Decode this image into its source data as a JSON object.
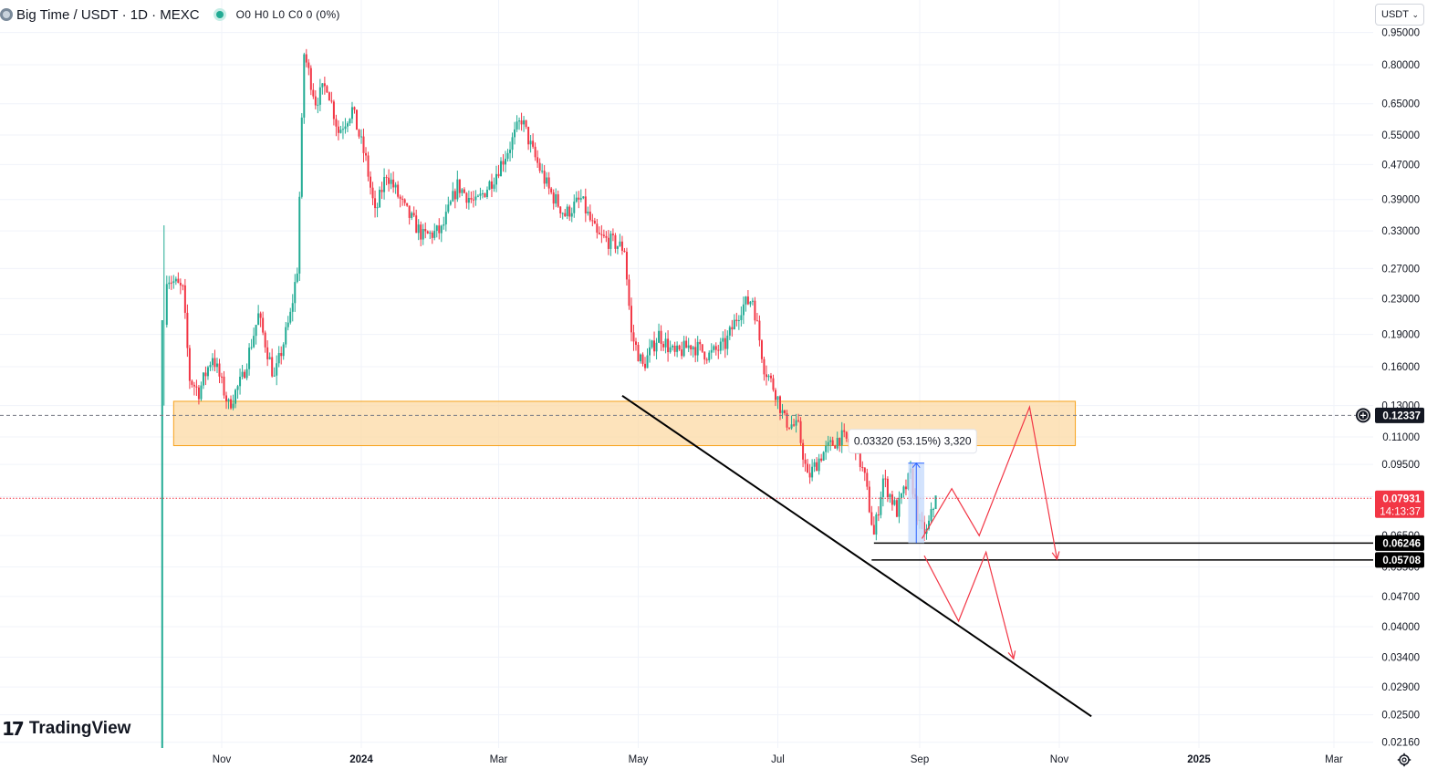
{
  "header": {
    "title": "Big Time / USDT · 1D · MEXC",
    "ohlc": "O0 H0 L0 C0 0 (0%)",
    "status_color": "#22ab94"
  },
  "currency_button": {
    "label": "USDT",
    "icon": "chevron-down-icon"
  },
  "logo": {
    "mark": "17",
    "text": "TradingView"
  },
  "settings_icon": "gear-icon",
  "colors": {
    "up": "#22ab94",
    "down": "#f23645",
    "zone_fill": "#fcd9a4",
    "zone_border": "#f7a21b",
    "measure_fill": "#c8dcfc",
    "measure_border": "#2962ff",
    "projection": "#f23645",
    "trendline": "#000000",
    "grid": "#f0f3fa",
    "axis_text": "#131722"
  },
  "chart_data": {
    "type": "candlestick",
    "title": "Big Time / USDT · 1D · MEXC",
    "y_scale": "log",
    "ylim": [
      0.0205,
      1.0
    ],
    "xlim": [
      "2023-09-23",
      "2025-03-31"
    ],
    "x_ticks": [
      {
        "date": "2023-11-01",
        "label": "Nov"
      },
      {
        "date": "2024-01-01",
        "label": "2024"
      },
      {
        "date": "2024-03-01",
        "label": "Mar"
      },
      {
        "date": "2024-05-01",
        "label": "May"
      },
      {
        "date": "2024-07-01",
        "label": "Jul"
      },
      {
        "date": "2024-09-01",
        "label": "Sep"
      },
      {
        "date": "2024-11-01",
        "label": "Nov"
      },
      {
        "date": "2025-01-01",
        "label": "2025"
      },
      {
        "date": "2025-03-01",
        "label": "Mar"
      }
    ],
    "y_ticks": [
      "0.95000",
      "0.80000",
      "0.65000",
      "0.55000",
      "0.47000",
      "0.39000",
      "0.33000",
      "0.27000",
      "0.23000",
      "0.19000",
      "0.16000",
      "0.13000",
      "0.11000",
      "0.09500",
      "0.08000",
      "0.06500",
      "0.05500",
      "0.04700",
      "0.04000",
      "0.03400",
      "0.02900",
      "0.02500",
      "0.02160"
    ],
    "grid": true,
    "price_path": [
      [
        "2023-10-06",
        0.07,
        0.12,
        0.03,
        0.12
      ],
      [
        "2023-10-08",
        0.26
      ],
      [
        "2023-10-15",
        0.24
      ],
      [
        "2023-10-18",
        0.15
      ],
      [
        "2023-10-22",
        0.14
      ],
      [
        "2023-10-28",
        0.17
      ],
      [
        "2023-11-04",
        0.13
      ],
      [
        "2023-11-10",
        0.15
      ],
      [
        "2023-11-17",
        0.21
      ],
      [
        "2023-11-24",
        0.15
      ],
      [
        "2023-12-01",
        0.21
      ],
      [
        "2023-12-04",
        0.27
      ],
      [
        "2023-12-07",
        0.85
      ],
      [
        "2023-12-12",
        0.66
      ],
      [
        "2023-12-17",
        0.72
      ],
      [
        "2023-12-22",
        0.56
      ],
      [
        "2023-12-28",
        0.63
      ],
      [
        "2024-01-03",
        0.48
      ],
      [
        "2024-01-07",
        0.36
      ],
      [
        "2024-01-12",
        0.45
      ],
      [
        "2024-01-20",
        0.37
      ],
      [
        "2024-01-28",
        0.32
      ],
      [
        "2024-02-05",
        0.33
      ],
      [
        "2024-02-12",
        0.42
      ],
      [
        "2024-02-20",
        0.38
      ],
      [
        "2024-02-28",
        0.44
      ],
      [
        "2024-03-06",
        0.52
      ],
      [
        "2024-03-11",
        0.6
      ],
      [
        "2024-03-16",
        0.5
      ],
      [
        "2024-03-23",
        0.41
      ],
      [
        "2024-03-30",
        0.36
      ],
      [
        "2024-04-06",
        0.39
      ],
      [
        "2024-04-13",
        0.32
      ],
      [
        "2024-04-20",
        0.31
      ],
      [
        "2024-04-25",
        0.3
      ],
      [
        "2024-04-28",
        0.19
      ],
      [
        "2024-05-03",
        0.16
      ],
      [
        "2024-05-10",
        0.19
      ],
      [
        "2024-05-17",
        0.17
      ],
      [
        "2024-05-24",
        0.18
      ],
      [
        "2024-06-01",
        0.17
      ],
      [
        "2024-06-08",
        0.18
      ],
      [
        "2024-06-15",
        0.22
      ],
      [
        "2024-06-20",
        0.23
      ],
      [
        "2024-06-25",
        0.16
      ],
      [
        "2024-06-30",
        0.14
      ],
      [
        "2024-07-04",
        0.12
      ],
      [
        "2024-07-10",
        0.115
      ],
      [
        "2024-07-14",
        0.088
      ],
      [
        "2024-07-20",
        0.1
      ],
      [
        "2024-07-28",
        0.11
      ],
      [
        "2024-08-04",
        0.105
      ],
      [
        "2024-08-08",
        0.088
      ],
      [
        "2024-08-12",
        0.065
      ],
      [
        "2024-08-16",
        0.088
      ],
      [
        "2024-08-22",
        0.074
      ],
      [
        "2024-08-28",
        0.09
      ],
      [
        "2024-09-01",
        0.068
      ],
      [
        "2024-09-04",
        0.066
      ],
      [
        "2024-09-08",
        0.07931
      ]
    ],
    "horizontal_lines": [
      {
        "value": 0.12337,
        "label": "0.12337",
        "style": "dashed",
        "color": "#787b86"
      },
      {
        "value": 0.07931,
        "label": "0.07931",
        "countdown": "14:13:37",
        "style": "dotted",
        "color": "#f23645"
      },
      {
        "value": 0.06246,
        "label": "0.06246",
        "style": "solid",
        "color": "#000000",
        "from": "2024-08-12"
      },
      {
        "value": 0.05708,
        "label": "0.05708",
        "style": "solid",
        "color": "#000000",
        "from": "2024-08-11"
      }
    ],
    "zone": {
      "x0": "2023-10-11",
      "x1": "2024-11-08",
      "y0": 0.105,
      "y1": 0.133
    },
    "trendline": [
      [
        "2024-04-24",
        0.137
      ],
      [
        "2024-11-15",
        0.0248
      ]
    ],
    "measure": {
      "x0": "2024-08-27",
      "x1": "2024-09-03",
      "y0": 0.06246,
      "y1": 0.09566,
      "label": "0.03320 (53.15%) 3,320"
    },
    "projection_up": [
      [
        "2024-09-02",
        0.064
      ],
      [
        "2024-09-15",
        0.0835
      ],
      [
        "2024-09-27",
        0.065
      ],
      [
        "2024-10-19",
        0.129
      ],
      [
        "2024-10-31",
        0.0573
      ]
    ],
    "projection_down": [
      [
        "2024-09-03",
        0.0584
      ],
      [
        "2024-09-18",
        0.0412
      ],
      [
        "2024-09-30",
        0.0595
      ],
      [
        "2024-10-12",
        0.0337
      ]
    ]
  }
}
